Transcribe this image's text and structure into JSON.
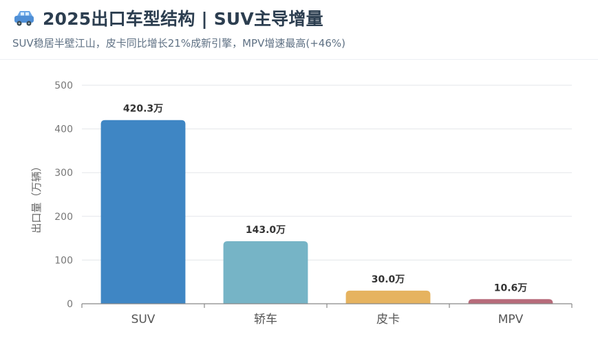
{
  "header": {
    "title": "2025出口车型结构 | SUV主导增量",
    "subtitle": "SUV稳居半壁江山，皮卡同比增长21%成新引擎，MPV增速最高(+46%)",
    "icon": "car-icon"
  },
  "chart_data": {
    "type": "bar",
    "categories": [
      "SUV",
      "轿车",
      "皮卡",
      "MPV"
    ],
    "values": [
      420.3,
      143.0,
      30.0,
      10.6
    ],
    "value_labels": [
      "420.3万",
      "143.0万",
      "30.0万",
      "10.6万"
    ],
    "colors": [
      "#3f86c4",
      "#76b4c6",
      "#e6b35f",
      "#b76b7a"
    ],
    "ylabel": "出口量（万辆）",
    "ylim": [
      0,
      500
    ],
    "yticks": [
      "0",
      "100",
      "200",
      "300",
      "400",
      "500"
    ],
    "grid": true
  }
}
